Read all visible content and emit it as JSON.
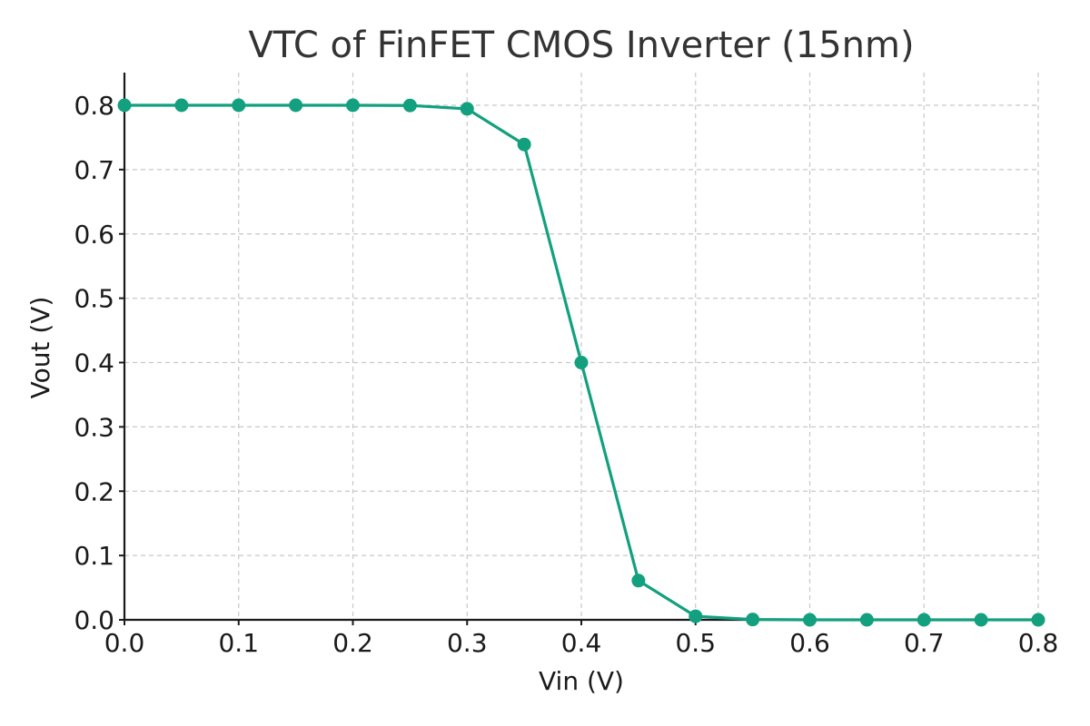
{
  "chart_data": {
    "type": "line",
    "title": "VTC of FinFET CMOS Inverter (15nm)",
    "xlabel": "Vin (V)",
    "ylabel": "Vout (V)",
    "xlim": [
      0.0,
      0.8
    ],
    "ylim": [
      0.0,
      0.85
    ],
    "xticks": [
      "0.0",
      "0.1",
      "0.2",
      "0.3",
      "0.4",
      "0.5",
      "0.6",
      "0.7",
      "0.8"
    ],
    "yticks": [
      "0.0",
      "0.1",
      "0.2",
      "0.3",
      "0.4",
      "0.5",
      "0.6",
      "0.7",
      "0.8"
    ],
    "grid": true,
    "line_color": "#12a07e",
    "series": [
      {
        "x": [
          0.0,
          0.05,
          0.1,
          0.15,
          0.2,
          0.25,
          0.3,
          0.35,
          0.4,
          0.45,
          0.5,
          0.55,
          0.6,
          0.65,
          0.7,
          0.75,
          0.8
        ],
        "values": [
          0.8,
          0.8,
          0.8,
          0.8,
          0.8,
          0.7997,
          0.7945,
          0.739,
          0.4,
          0.061,
          0.0055,
          0.0005,
          0.0,
          0.0,
          0.0,
          0.0,
          0.0
        ]
      }
    ]
  }
}
